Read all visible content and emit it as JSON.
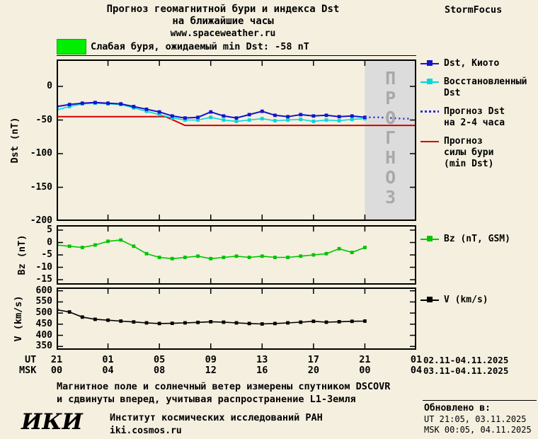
{
  "header": {
    "title_line1": "Прогноз геомагнитной бури и индекса Dst",
    "title_line2": "на ближайшие часы",
    "title_line3": "www.spaceweather.ru",
    "brand": "StormFocus"
  },
  "storm_banner": {
    "text": "Слабая буря, ожидаемый min Dst: -58 nT",
    "swatch_color": "#00ee00"
  },
  "forecast_band": {
    "label": "ПРОГНОЗ",
    "fill": "#dcdcdc"
  },
  "legends": {
    "main": [
      {
        "label": "Dst, Киото",
        "color": "#1414cc",
        "style": "solid-marker"
      },
      {
        "label": "Восстановленный\nDst",
        "color": "#00d8d8",
        "style": "solid-marker"
      },
      {
        "label": "Прогноз Dst\nна 2-4 часа",
        "color": "#2a2ae8",
        "style": "dotted"
      },
      {
        "label": "Прогноз\nсилы бури\n(min Dst)",
        "color": "#d40000",
        "style": "solid"
      }
    ],
    "bz": [
      {
        "label": "Bz (nT, GSM)",
        "color": "#00c400",
        "style": "solid-marker"
      }
    ],
    "v": [
      {
        "label": "V (km/s)",
        "color": "#000000",
        "style": "solid-marker"
      }
    ]
  },
  "chart_data": [
    {
      "type": "line",
      "title": "Dst forecast panel",
      "ylabel": "Dst (nT)",
      "ylim": [
        -200,
        40
      ],
      "yticks": [
        0,
        -50,
        -100,
        -150,
        -200
      ],
      "xlim": [
        0,
        28
      ],
      "xticks": [
        0,
        4,
        8,
        12,
        16,
        20,
        24,
        28
      ],
      "forecast_region": [
        24,
        28
      ],
      "series": [
        {
          "id": "storm-forecast-line",
          "name": "Прогноз силы бури (min Dst)",
          "color": "#d40000",
          "width": 2,
          "x": [
            0,
            8.5,
            10,
            28
          ],
          "y": [
            -45,
            -45,
            -58,
            -58
          ]
        },
        {
          "id": "dst-reconstructed",
          "name": "Восстановленный Dst",
          "color": "#00d8d8",
          "width": 1.6,
          "marker": true,
          "x": [
            0,
            1,
            2,
            3,
            4,
            5,
            6,
            7,
            8,
            9,
            10,
            11,
            12,
            13,
            14,
            15,
            16,
            17,
            18,
            19,
            20,
            21,
            22,
            23,
            24
          ],
          "y": [
            -35,
            -30,
            -26,
            -25,
            -26,
            -27,
            -32,
            -37,
            -42,
            -47,
            -50,
            -50,
            -46,
            -50,
            -52,
            -50,
            -48,
            -51,
            -50,
            -49,
            -52,
            -50,
            -51,
            -49,
            -48
          ]
        },
        {
          "id": "dst-kyoto",
          "name": "Dst, Киото",
          "color": "#1414cc",
          "width": 2,
          "marker": true,
          "x": [
            0,
            1,
            2,
            3,
            4,
            5,
            6,
            7,
            8,
            9,
            10,
            11,
            12,
            13,
            14,
            15,
            16,
            17,
            18,
            19,
            20,
            21,
            22,
            23,
            24
          ],
          "y": [
            -30,
            -27,
            -25,
            -24,
            -25,
            -26,
            -30,
            -34,
            -38,
            -44,
            -47,
            -46,
            -38,
            -44,
            -47,
            -42,
            -37,
            -43,
            -45,
            -42,
            -44,
            -43,
            -45,
            -44,
            -46
          ]
        },
        {
          "id": "dst-forecast",
          "name": "Прогноз Dst на 2-4 часа",
          "color": "#2a2ae8",
          "width": 2.5,
          "dotted": true,
          "x": [
            24,
            25,
            26,
            27,
            27.6
          ],
          "y": [
            -46,
            -46,
            -47,
            -48,
            -48
          ]
        }
      ]
    },
    {
      "type": "line",
      "title": "Bz panel",
      "ylabel": "Bz (nT)",
      "ylim": [
        -17,
        7
      ],
      "yticks": [
        5,
        0,
        -5,
        -10,
        -15
      ],
      "xlim": [
        0,
        28
      ],
      "xticks": [
        0,
        4,
        8,
        12,
        16,
        20,
        24,
        28
      ],
      "series": [
        {
          "id": "bz",
          "name": "Bz (nT, GSM)",
          "color": "#00c400",
          "width": 1.6,
          "marker": true,
          "x": [
            0,
            1,
            2,
            3,
            4,
            5,
            6,
            7,
            8,
            9,
            10,
            11,
            12,
            13,
            14,
            15,
            16,
            17,
            18,
            19,
            20,
            21,
            22,
            23,
            24
          ],
          "y": [
            -1,
            -1.5,
            -2,
            -1,
            0.5,
            1,
            -1.5,
            -4.5,
            -6,
            -6.5,
            -6,
            -5.5,
            -6.5,
            -6,
            -5.5,
            -6,
            -5.5,
            -6,
            -6,
            -5.5,
            -5,
            -4.5,
            -2.5,
            -4,
            -2
          ]
        }
      ]
    },
    {
      "type": "line",
      "title": "Solar wind speed panel",
      "ylabel": "V (km/s)",
      "ylim": [
        335,
        615
      ],
      "yticks": [
        600,
        550,
        500,
        450,
        400,
        350
      ],
      "xlim": [
        0,
        28
      ],
      "xticks": [
        0,
        4,
        8,
        12,
        16,
        20,
        24,
        28
      ],
      "series": [
        {
          "id": "v",
          "name": "V (km/s)",
          "color": "#000000",
          "width": 1.6,
          "marker": true,
          "x": [
            0,
            1,
            2,
            3,
            4,
            5,
            6,
            7,
            8,
            9,
            10,
            11,
            12,
            13,
            14,
            15,
            16,
            17,
            18,
            19,
            20,
            21,
            22,
            23,
            24
          ],
          "y": [
            515,
            505,
            482,
            472,
            468,
            464,
            460,
            456,
            453,
            454,
            456,
            458,
            461,
            459,
            456,
            453,
            451,
            453,
            456,
            459,
            463,
            459,
            461,
            463,
            464
          ]
        }
      ]
    }
  ],
  "xaxis": {
    "ut_label": "UT",
    "msk_label": "MSK",
    "ut_ticks": [
      "21",
      "01",
      "05",
      "09",
      "13",
      "17",
      "21",
      "01"
    ],
    "msk_ticks": [
      "00",
      "04",
      "08",
      "12",
      "16",
      "20",
      "00",
      "04"
    ],
    "ut_range": "02.11-04.11.2025",
    "msk_range": "03.11-04.11.2025"
  },
  "footer": {
    "note_line1": "Магнитное поле и солнечный ветер измерены спутником DSCOVR",
    "note_line2": "и сдвинуты вперед, учитывая распространение L1-Земля",
    "logo": "ИКИ",
    "institute": "Институт космических исследований РАН",
    "site": "iki.cosmos.ru",
    "updated_label": "Обновлено в:",
    "updated_ut": "UT  21:05, 03.11.2025",
    "updated_msk": "MSK 00:05, 04.11.2025"
  }
}
